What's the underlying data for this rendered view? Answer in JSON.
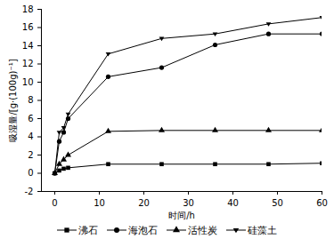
{
  "chart_data": {
    "type": "line",
    "x_label": "时间/h",
    "y_label": "吸湿量/[g·(100g)⁻¹]",
    "x": [
      0,
      1,
      2,
      3,
      12,
      24,
      36,
      48,
      60
    ],
    "series": [
      {
        "name": "沸石",
        "color": "#000000",
        "marker": "square",
        "values": [
          0,
          0.3,
          0.5,
          0.6,
          1.0,
          1.0,
          1.0,
          1.0,
          1.1
        ]
      },
      {
        "name": "海泡石",
        "color": "#000000",
        "marker": "circle",
        "values": [
          0,
          3.5,
          4.5,
          6.0,
          10.6,
          11.6,
          14.1,
          15.3,
          15.3
        ]
      },
      {
        "name": "活性炭",
        "color": "#000000",
        "marker": "triangle",
        "values": [
          0,
          1.0,
          1.5,
          2.0,
          4.6,
          4.7,
          4.7,
          4.7,
          4.7
        ]
      },
      {
        "name": "硅藻土",
        "color": "#000000",
        "marker": "triangle-down",
        "values": [
          0,
          4.5,
          5.0,
          6.5,
          13.1,
          14.8,
          15.3,
          16.4,
          17.1
        ]
      }
    ],
    "xlim": [
      -3,
      60
    ],
    "ylim": [
      -2,
      18
    ],
    "xticks": [
      0,
      10,
      20,
      30,
      40,
      50,
      60
    ],
    "yticks": [
      -2,
      0,
      2,
      4,
      6,
      8,
      10,
      12,
      14,
      16,
      18
    ],
    "grid": false,
    "legend": "bottom"
  }
}
